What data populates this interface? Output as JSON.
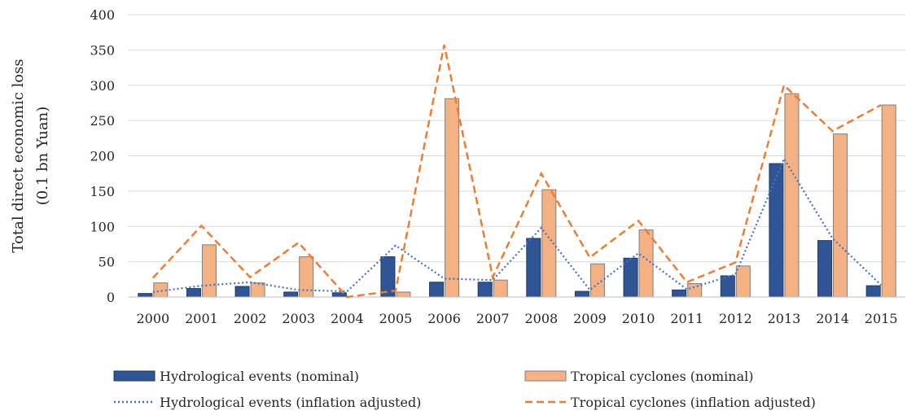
{
  "chart_data": {
    "type": "bar",
    "title": "",
    "xlabel": "",
    "ylabel_lines": [
      "Total direct economic loss",
      "(0.1 bn Yuan)"
    ],
    "ylim": [
      0,
      400
    ],
    "yticks": [
      0,
      50,
      100,
      150,
      200,
      250,
      300,
      350,
      400
    ],
    "categories": [
      "2000",
      "2001",
      "2002",
      "2003",
      "2004",
      "2005",
      "2006",
      "2007",
      "2008",
      "2009",
      "2010",
      "2011",
      "2012",
      "2013",
      "2014",
      "2015"
    ],
    "grid": true,
    "legend_position": "bottom",
    "series": [
      {
        "name": "Hydrological events (nominal)",
        "kind": "bar",
        "color": "#2F5597",
        "values": [
          5,
          12,
          15,
          7,
          6,
          57,
          21,
          21,
          83,
          8,
          55,
          10,
          30,
          189,
          80,
          16
        ]
      },
      {
        "name": "Tropical cyclones (nominal)",
        "kind": "bar",
        "color": "#F4B183",
        "values": [
          20,
          74,
          20,
          57,
          0,
          7,
          281,
          24,
          152,
          47,
          95,
          19,
          44,
          288,
          231,
          272
        ]
      },
      {
        "name": "Hydrological events (inflation adjusted)",
        "kind": "line",
        "style": "dotted",
        "color": "#4472C4",
        "values": [
          7,
          16,
          21,
          10,
          8,
          73,
          26,
          24,
          98,
          10,
          62,
          11,
          32,
          196,
          83,
          17
        ]
      },
      {
        "name": "Tropical cyclones (inflation adjusted)",
        "kind": "line",
        "style": "dashed",
        "color": "#ED7D31",
        "values": [
          27,
          101,
          28,
          77,
          0,
          9,
          357,
          28,
          175,
          56,
          108,
          21,
          49,
          300,
          235,
          272
        ]
      }
    ]
  }
}
